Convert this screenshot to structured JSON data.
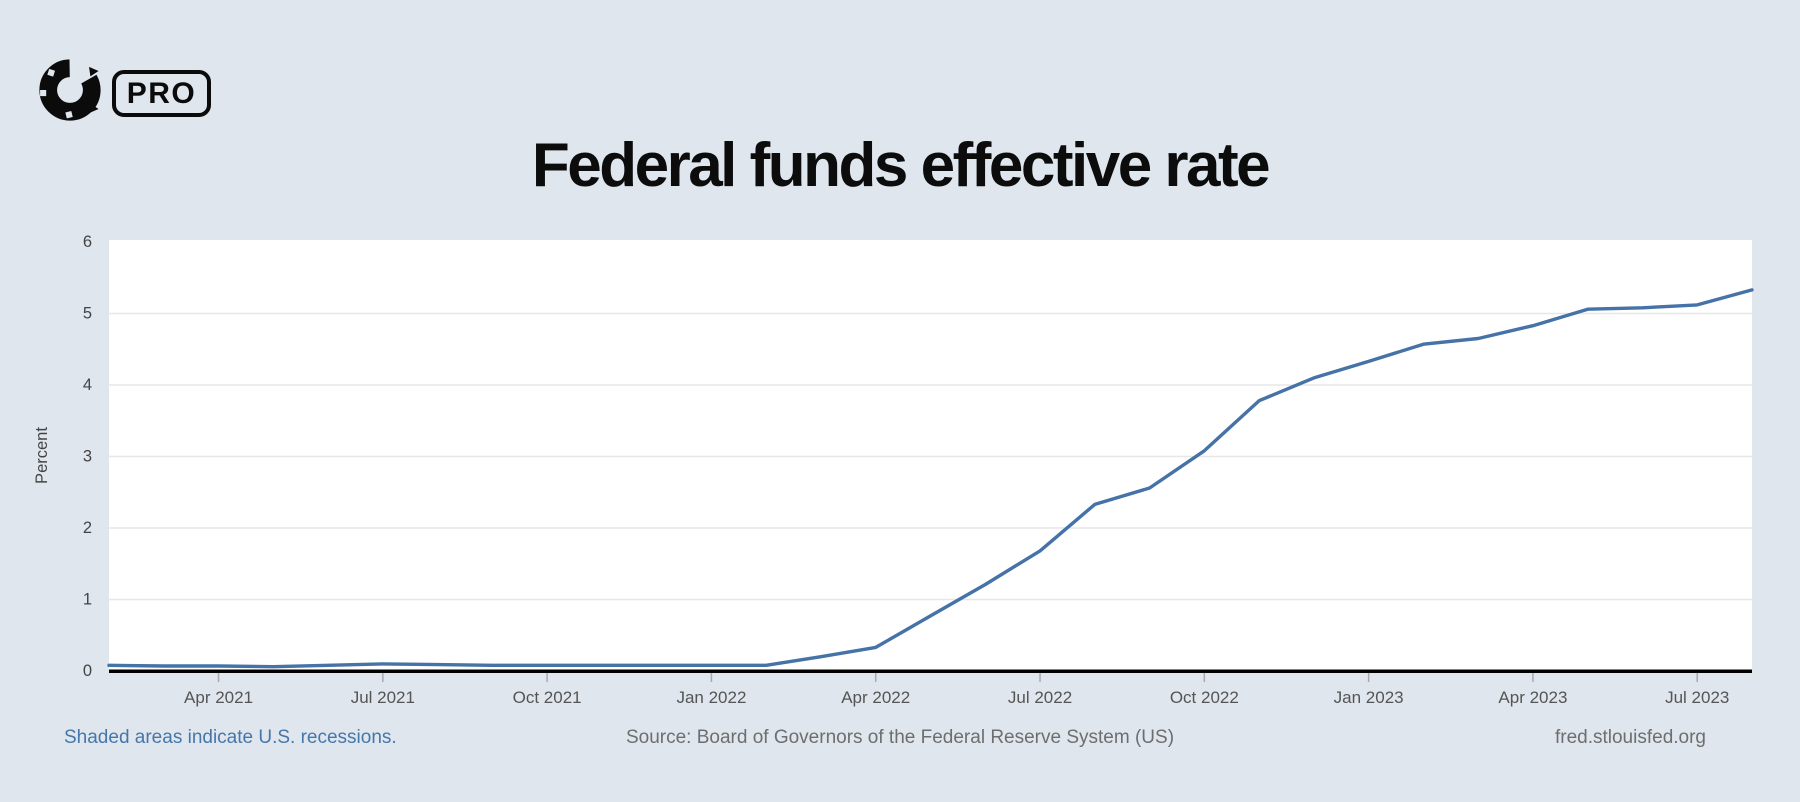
{
  "logo": {
    "mark": "C",
    "pro_label": "PRO"
  },
  "title": {
    "text": "Federal funds effective rate"
  },
  "chart_data": {
    "type": "line",
    "title": "Federal funds effective rate",
    "xlabel": "",
    "ylabel": "Percent",
    "ylim": [
      0,
      6
    ],
    "yticks": [
      0,
      1,
      2,
      3,
      4,
      5,
      6
    ],
    "grid": "horizontal",
    "legend": "none",
    "line_color": "#4572a7",
    "x": [
      "Feb 2021",
      "Mar 2021",
      "Apr 2021",
      "May 2021",
      "Jun 2021",
      "Jul 2021",
      "Aug 2021",
      "Sep 2021",
      "Oct 2021",
      "Nov 2021",
      "Dec 2021",
      "Jan 2022",
      "Feb 2022",
      "Mar 2022",
      "Apr 2022",
      "May 2022",
      "Jun 2022",
      "Jul 2022",
      "Aug 2022",
      "Sep 2022",
      "Oct 2022",
      "Nov 2022",
      "Dec 2022",
      "Jan 2023",
      "Feb 2023",
      "Mar 2023",
      "Apr 2023",
      "May 2023",
      "Jun 2023",
      "Jul 2023",
      "Aug 2023"
    ],
    "values": [
      0.08,
      0.07,
      0.07,
      0.06,
      0.08,
      0.1,
      0.09,
      0.08,
      0.08,
      0.08,
      0.08,
      0.08,
      0.08,
      0.2,
      0.33,
      0.77,
      1.21,
      1.68,
      2.33,
      2.56,
      3.08,
      3.78,
      4.1,
      4.33,
      4.57,
      4.65,
      4.83,
      5.06,
      5.08,
      5.12,
      5.33
    ],
    "xticks": [
      {
        "label": "Apr 2021",
        "index": 2
      },
      {
        "label": "Jul 2021",
        "index": 5
      },
      {
        "label": "Oct 2021",
        "index": 8
      },
      {
        "label": "Jan 2022",
        "index": 11
      },
      {
        "label": "Apr 2022",
        "index": 14
      },
      {
        "label": "Jul 2022",
        "index": 17
      },
      {
        "label": "Oct 2022",
        "index": 20
      },
      {
        "label": "Jan 2023",
        "index": 23
      },
      {
        "label": "Apr 2023",
        "index": 26
      },
      {
        "label": "Jul 2023",
        "index": 29
      }
    ]
  },
  "footer": {
    "recessions_note": "Shaded areas indicate U.S. recessions.",
    "source": "Source: Board of Governors of the Federal Reserve System (US)",
    "site": "fred.stlouisfed.org"
  },
  "colors": {
    "background": "#dfe6ee",
    "plot_background": "#ffffff",
    "line": "#4572a7",
    "gridline": "#e7e7e7",
    "axis_line": "#000000",
    "tick_label": "#555555",
    "y_label": "#444444",
    "footer_link": "#4677aa",
    "footer_text": "#6e6e6e",
    "title_text": "#0c0c0c"
  }
}
